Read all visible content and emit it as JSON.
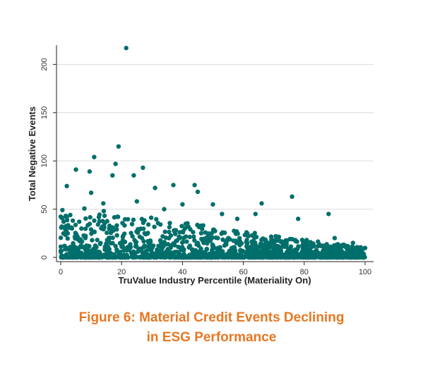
{
  "figure": {
    "caption_line1": "Figure 6: Material Credit Events Declining",
    "caption_line2": "in ESG Performance",
    "caption_color": "#e87722"
  },
  "chart_data": {
    "type": "scatter",
    "title": "",
    "xlabel": "TruValue Industry Percentile (Materiality On)",
    "ylabel": "Total Negative Events",
    "xlim": [
      0,
      100
    ],
    "ylim": [
      0,
      220
    ],
    "xticks": [
      0,
      20,
      40,
      60,
      80,
      100
    ],
    "yticks": [
      0,
      50,
      100,
      150,
      200
    ],
    "grid": true,
    "marker_color": "#006f6b",
    "notable_points": [
      {
        "x": 21.5,
        "y": 217
      },
      {
        "x": 19,
        "y": 115
      },
      {
        "x": 11,
        "y": 104
      },
      {
        "x": 5,
        "y": 91
      },
      {
        "x": 9.5,
        "y": 89
      },
      {
        "x": 27,
        "y": 93
      },
      {
        "x": 18,
        "y": 97
      },
      {
        "x": 24,
        "y": 85
      },
      {
        "x": 2,
        "y": 74
      },
      {
        "x": 10,
        "y": 67
      },
      {
        "x": 17,
        "y": 85
      },
      {
        "x": 37,
        "y": 75
      },
      {
        "x": 44,
        "y": 75
      },
      {
        "x": 76,
        "y": 63
      },
      {
        "x": 88,
        "y": 45
      },
      {
        "x": 66,
        "y": 56
      },
      {
        "x": 14,
        "y": 56
      },
      {
        "x": 2,
        "y": 42
      },
      {
        "x": 31,
        "y": 72
      },
      {
        "x": 45,
        "y": 68
      },
      {
        "x": 50,
        "y": 55
      },
      {
        "x": 58,
        "y": 40
      },
      {
        "x": 64,
        "y": 45
      },
      {
        "x": 78,
        "y": 40
      },
      {
        "x": 90,
        "y": 20
      },
      {
        "x": 96,
        "y": 15
      },
      {
        "x": 25,
        "y": 58
      },
      {
        "x": 34,
        "y": 50
      },
      {
        "x": 40,
        "y": 55
      },
      {
        "x": 53,
        "y": 45
      }
    ]
  }
}
